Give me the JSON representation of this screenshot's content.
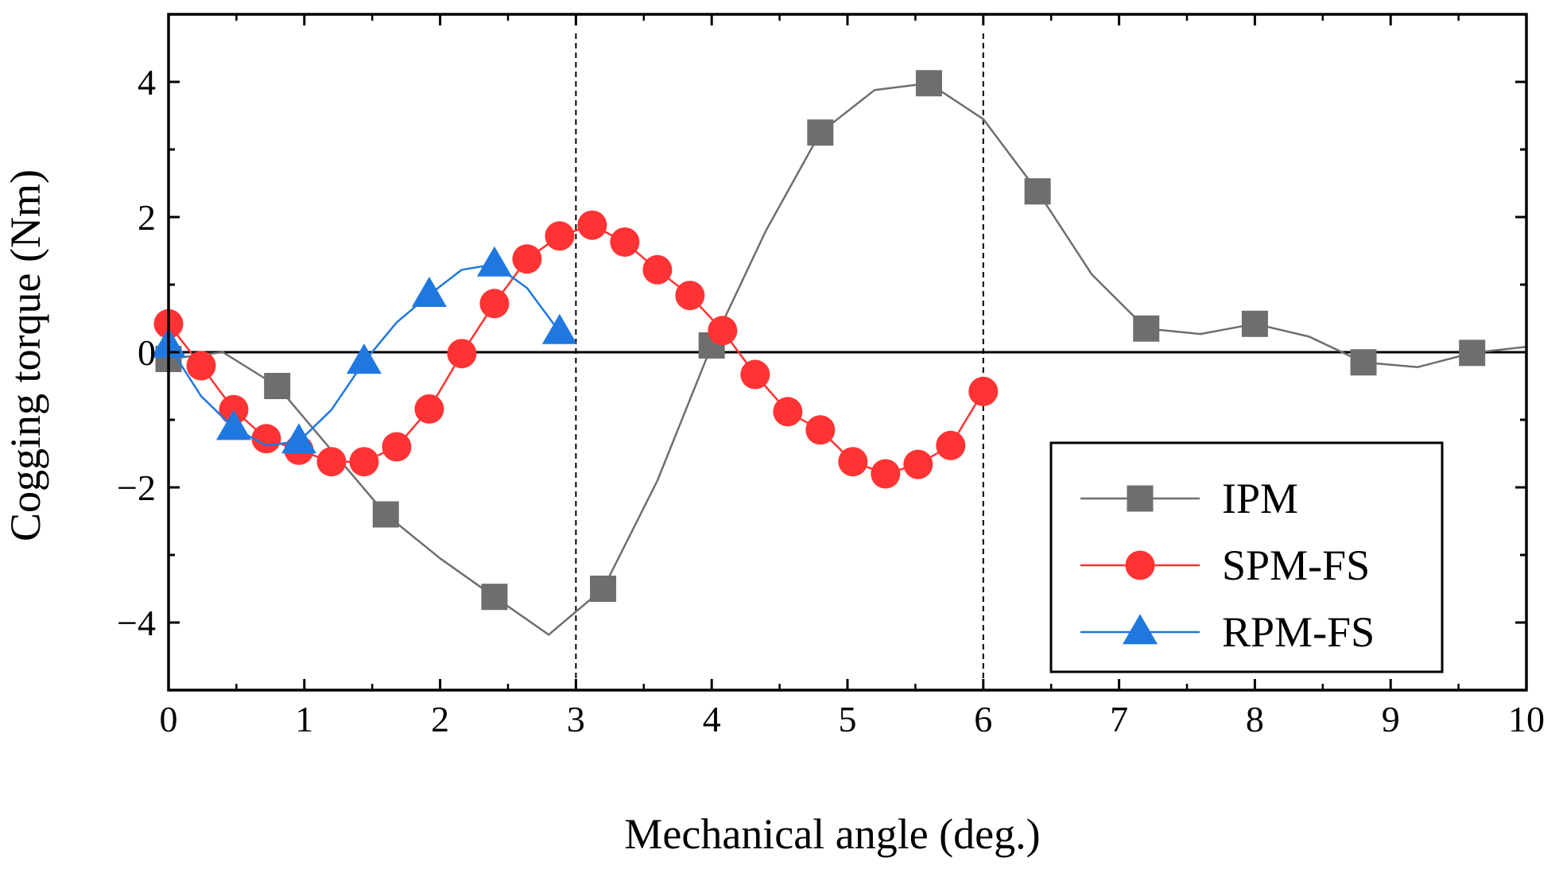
{
  "chart_data": {
    "type": "line",
    "title": "",
    "xlabel": "Mechanical angle (deg.)",
    "ylabel": "Cogging torque (Nm)",
    "xlim": [
      0,
      10
    ],
    "ylim": [
      -5,
      5
    ],
    "xticks": [
      0,
      1,
      2,
      3,
      4,
      5,
      6,
      7,
      8,
      9,
      10
    ],
    "xtick_labels": [
      "0",
      "1",
      "2",
      "3",
      "4",
      "5",
      "6",
      "7",
      "8",
      "9",
      "10"
    ],
    "yticks": [
      -4,
      -2,
      0,
      2,
      4
    ],
    "ytick_labels": [
      "−4",
      "−2",
      "0",
      "2",
      "4"
    ],
    "zero_line": 0,
    "vertical_dashed_lines": [
      3,
      6
    ],
    "legend_position": "bottom-right",
    "series": [
      {
        "name": "IPM",
        "color": "#6e6e6e",
        "marker": "square",
        "line_x": [
          0,
          0.4,
          0.8,
          1.2,
          1.6,
          2.0,
          2.4,
          2.8,
          3.2,
          3.6,
          4.0,
          4.4,
          4.8,
          5.2,
          5.6,
          6.0,
          6.4,
          6.8,
          7.2,
          7.6,
          8.0,
          8.4,
          8.8,
          9.2,
          9.6,
          10.0
        ],
        "line_y": [
          -0.1,
          0.0,
          -0.5,
          -1.45,
          -2.4,
          -3.05,
          -3.62,
          -4.18,
          -3.5,
          -1.9,
          0.1,
          1.8,
          3.25,
          3.88,
          3.98,
          3.45,
          2.38,
          1.15,
          0.35,
          0.27,
          0.42,
          0.23,
          -0.15,
          -0.22,
          -0.01,
          0.08
        ],
        "marker_x": [
          0,
          0.8,
          1.6,
          2.4,
          3.2,
          4.0,
          4.8,
          5.6,
          6.4,
          7.2,
          8.0,
          8.8,
          9.6
        ],
        "marker_y": [
          -0.1,
          -0.5,
          -2.4,
          -3.62,
          -3.5,
          0.1,
          3.25,
          3.98,
          2.38,
          0.35,
          0.42,
          -0.15,
          -0.01
        ]
      },
      {
        "name": "SPM-FS",
        "color": "#ff3333",
        "marker": "circle",
        "line_x": [
          0,
          0.24,
          0.48,
          0.72,
          0.96,
          1.2,
          1.44,
          1.68,
          1.92,
          2.16,
          2.4,
          2.64,
          2.88,
          3.12,
          3.36,
          3.6,
          3.84,
          4.08,
          4.32,
          4.56,
          4.8,
          5.04,
          5.28,
          5.52,
          5.76,
          6.0
        ],
        "line_y": [
          0.42,
          -0.2,
          -0.85,
          -1.28,
          -1.45,
          -1.62,
          -1.62,
          -1.4,
          -0.84,
          -0.02,
          0.72,
          1.38,
          1.72,
          1.88,
          1.63,
          1.22,
          0.84,
          0.32,
          -0.33,
          -0.88,
          -1.15,
          -1.62,
          -1.8,
          -1.66,
          -1.38,
          -0.58
        ],
        "marker_x": [
          0,
          0.24,
          0.48,
          0.72,
          0.96,
          1.2,
          1.44,
          1.68,
          1.92,
          2.16,
          2.4,
          2.64,
          2.88,
          3.12,
          3.36,
          3.6,
          3.84,
          4.08,
          4.32,
          4.56,
          4.8,
          5.04,
          5.28,
          5.52,
          5.76,
          6.0
        ],
        "marker_y": [
          0.42,
          -0.2,
          -0.85,
          -1.28,
          -1.45,
          -1.62,
          -1.62,
          -1.4,
          -0.84,
          -0.02,
          0.72,
          1.38,
          1.72,
          1.88,
          1.63,
          1.22,
          0.84,
          0.32,
          -0.33,
          -0.88,
          -1.15,
          -1.62,
          -1.8,
          -1.66,
          -1.38,
          -0.58
        ]
      },
      {
        "name": "RPM-FS",
        "color": "#1f78e0",
        "marker": "triangle",
        "line_x": [
          0,
          0.24,
          0.48,
          0.72,
          0.96,
          1.2,
          1.44,
          1.68,
          1.92,
          2.16,
          2.4,
          2.64,
          2.88
        ],
        "line_y": [
          0.1,
          -0.65,
          -1.12,
          -1.38,
          -1.32,
          -0.85,
          -0.14,
          0.44,
          0.85,
          1.22,
          1.3,
          0.95,
          0.3
        ],
        "marker_x": [
          0,
          0.48,
          0.96,
          1.44,
          1.92,
          2.4,
          2.88
        ],
        "marker_y": [
          0.1,
          -1.12,
          -1.32,
          -0.14,
          0.85,
          1.3,
          0.3
        ]
      }
    ]
  }
}
